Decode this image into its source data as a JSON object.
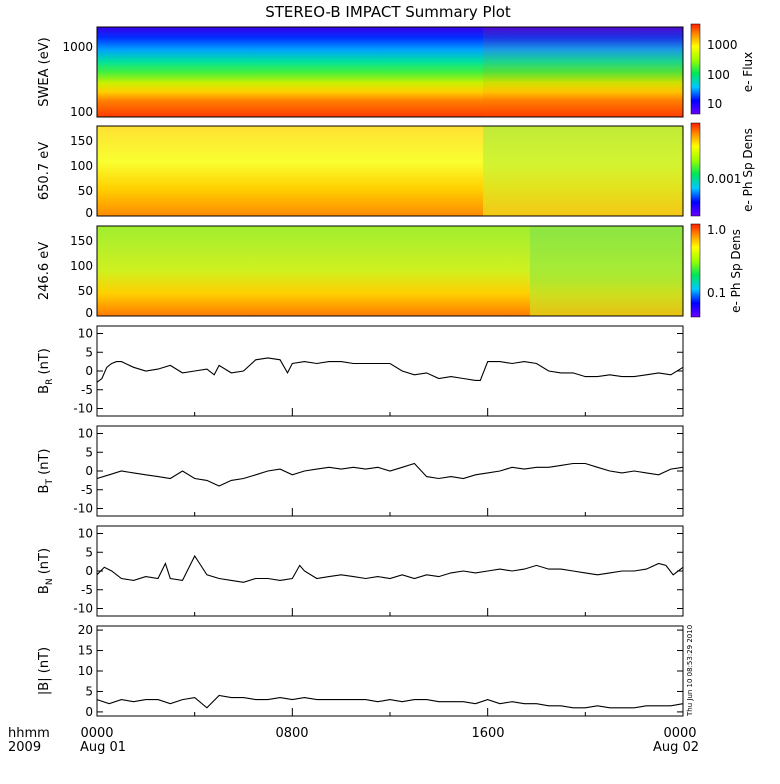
{
  "title": "STEREO-B IMPACT Summary Plot",
  "footer": {
    "hhmm_label": "hhmm",
    "year_label": "2009",
    "x_ticks": [
      {
        "time": "0000",
        "date": "Aug 01"
      },
      {
        "time": "0800",
        "date": ""
      },
      {
        "time": "1600",
        "date": ""
      },
      {
        "time": "0000",
        "date": "Aug 02"
      }
    ],
    "timestamp": "Thu Jun 10 08:53:29 2010"
  },
  "colors": {
    "line": "#000000",
    "axis": "#000000",
    "background": "#ffffff"
  },
  "chart_data": [
    {
      "id": "swea",
      "type": "heatmap",
      "ylabel": "SWEA (eV)",
      "y_ticks": [
        "1000",
        "100"
      ],
      "y_scale": "log",
      "colorbar_label": "e- Flux",
      "colorbar_ticks": [
        "1000",
        "100",
        "10"
      ],
      "x_range_hours": [
        0,
        24
      ],
      "description_levels": "high energy low flux (blue), low energy high flux (red); step increase near 16:00"
    },
    {
      "id": "pad650",
      "type": "heatmap",
      "ylabel": "650.7 eV",
      "y_ticks": [
        "150",
        "100",
        "50",
        "0"
      ],
      "y_range": [
        0,
        180
      ],
      "colorbar_label": "e- Ph Sp Dens",
      "colorbar_ticks": [
        "0.001"
      ]
    },
    {
      "id": "pad246",
      "type": "heatmap",
      "ylabel": "246.6 eV",
      "y_ticks": [
        "150",
        "100",
        "50",
        "0"
      ],
      "y_range": [
        0,
        180
      ],
      "colorbar_label": "e- Ph Sp Dens",
      "colorbar_ticks": [
        "1.0",
        "0.1"
      ]
    },
    {
      "id": "br",
      "type": "line",
      "ylabel_main": "B",
      "ylabel_sub": "R",
      "ylabel_unit": " (nT)",
      "y_range": [
        -12,
        12
      ],
      "y_ticks": [
        "10",
        "5",
        "0",
        "-5",
        "-10"
      ],
      "x": [
        0,
        0.2,
        0.4,
        0.6,
        0.8,
        1,
        1.5,
        2,
        2.5,
        3,
        3.5,
        4,
        4.5,
        4.8,
        5,
        5.5,
        6,
        6.5,
        7,
        7.5,
        7.8,
        8,
        8.5,
        9,
        9.5,
        10,
        10.5,
        11,
        11.5,
        12,
        12.5,
        13,
        13.5,
        14,
        14.5,
        15,
        15.5,
        15.7,
        16,
        16.5,
        17,
        17.5,
        18,
        18.5,
        19,
        19.5,
        20,
        20.5,
        21,
        21.5,
        22,
        22.5,
        23,
        23.5,
        24
      ],
      "y": [
        -3,
        -2,
        1,
        2,
        2.5,
        2.5,
        1,
        0,
        0.5,
        1.5,
        -0.5,
        0,
        0.5,
        -1,
        1.5,
        -0.5,
        0,
        3,
        3.5,
        3,
        -0.5,
        2,
        2.5,
        2,
        2.5,
        2.5,
        2,
        2,
        2,
        2,
        0,
        -1,
        -0.5,
        -2,
        -1.5,
        -2,
        -2.5,
        -2.5,
        2.5,
        2.5,
        2,
        2.5,
        2,
        0,
        -0.5,
        -0.5,
        -1.5,
        -1.5,
        -1,
        -1.5,
        -1.5,
        -1,
        -0.5,
        -1,
        1
      ]
    },
    {
      "id": "bt",
      "type": "line",
      "ylabel_main": "B",
      "ylabel_sub": "T",
      "ylabel_unit": " (nT)",
      "y_range": [
        -12,
        12
      ],
      "y_ticks": [
        "10",
        "5",
        "0",
        "-5",
        "-10"
      ],
      "x": [
        0,
        0.5,
        1,
        1.5,
        2,
        2.5,
        3,
        3.5,
        4,
        4.5,
        5,
        5.5,
        6,
        6.5,
        7,
        7.5,
        8,
        8.5,
        9,
        9.5,
        10,
        10.5,
        11,
        11.5,
        12,
        12.5,
        13,
        13.5,
        14,
        14.5,
        15,
        15.5,
        16,
        16.5,
        17,
        17.5,
        18,
        18.5,
        19,
        19.5,
        20,
        20.5,
        21,
        21.5,
        22,
        22.5,
        23,
        23.5,
        24
      ],
      "y": [
        -2,
        -1,
        0,
        -0.5,
        -1,
        -1.5,
        -2,
        0,
        -2,
        -2.5,
        -4,
        -2.5,
        -2,
        -1,
        0,
        0.5,
        -1,
        0,
        0.5,
        1,
        0.5,
        1,
        0.5,
        1,
        0,
        1,
        2,
        -1.5,
        -2,
        -1.5,
        -2,
        -1,
        -0.5,
        0,
        1,
        0.5,
        1,
        1,
        1.5,
        2,
        2,
        1,
        0,
        -0.5,
        0,
        -0.5,
        -1,
        0.5,
        1
      ]
    },
    {
      "id": "bn",
      "type": "line",
      "ylabel_main": "B",
      "ylabel_sub": "N",
      "ylabel_unit": " (nT)",
      "y_range": [
        -12,
        12
      ],
      "y_ticks": [
        "10",
        "5",
        "0",
        "-5",
        "-10"
      ],
      "x": [
        0,
        0.3,
        0.6,
        1,
        1.5,
        2,
        2.5,
        2.8,
        3,
        3.5,
        4,
        4.2,
        4.5,
        5,
        5.5,
        6,
        6.5,
        7,
        7.5,
        8,
        8.3,
        8.5,
        9,
        9.5,
        10,
        10.5,
        11,
        11.5,
        12,
        12.5,
        13,
        13.5,
        14,
        14.5,
        15,
        15.5,
        16,
        16.5,
        17,
        17.5,
        18,
        18.5,
        19,
        19.5,
        20,
        20.5,
        21,
        21.5,
        22,
        22.5,
        23,
        23.3,
        23.6,
        24
      ],
      "y": [
        -1,
        1,
        0,
        -2,
        -2.5,
        -1.5,
        -2,
        2,
        -2,
        -2.5,
        4,
        2,
        -1,
        -2,
        -2.5,
        -3,
        -2,
        -2,
        -2.5,
        -2,
        1.5,
        0,
        -2,
        -1.5,
        -1,
        -1.5,
        -2,
        -1.5,
        -2,
        -1,
        -2,
        -1,
        -1.5,
        -0.5,
        0,
        -0.5,
        0,
        0.5,
        0,
        0.5,
        1.5,
        0.5,
        0.5,
        0,
        -0.5,
        -1,
        -0.5,
        0,
        0,
        0.5,
        2,
        1.5,
        -1,
        1
      ]
    },
    {
      "id": "bmag",
      "type": "line",
      "ylabel_main": "|B|",
      "ylabel_sub": "",
      "ylabel_unit": " (nT)",
      "y_range": [
        -1,
        21
      ],
      "y_ticks": [
        "20",
        "15",
        "10",
        "5",
        "0"
      ],
      "x": [
        0,
        0.5,
        1,
        1.5,
        2,
        2.5,
        3,
        3.5,
        4,
        4.5,
        5,
        5.5,
        6,
        6.5,
        7,
        7.5,
        8,
        8.5,
        9,
        9.5,
        10,
        10.5,
        11,
        11.5,
        12,
        12.5,
        13,
        13.5,
        14,
        14.5,
        15,
        15.5,
        16,
        16.5,
        17,
        17.5,
        18,
        18.5,
        19,
        19.5,
        20,
        20.5,
        21,
        21.5,
        22,
        22.5,
        23,
        23.5,
        24
      ],
      "y": [
        3,
        2,
        3,
        2.5,
        3,
        3,
        2,
        3,
        3.5,
        1,
        4,
        3.5,
        3.5,
        3,
        3,
        3.5,
        3,
        3.5,
        3,
        3,
        3,
        3,
        3,
        2.5,
        3,
        2.5,
        3,
        3,
        2.5,
        2.5,
        2.5,
        2,
        3,
        2,
        2.5,
        2,
        2,
        1.5,
        1.5,
        1,
        1,
        1.5,
        1,
        1,
        1,
        1.5,
        1.5,
        1.5,
        2
      ]
    }
  ]
}
